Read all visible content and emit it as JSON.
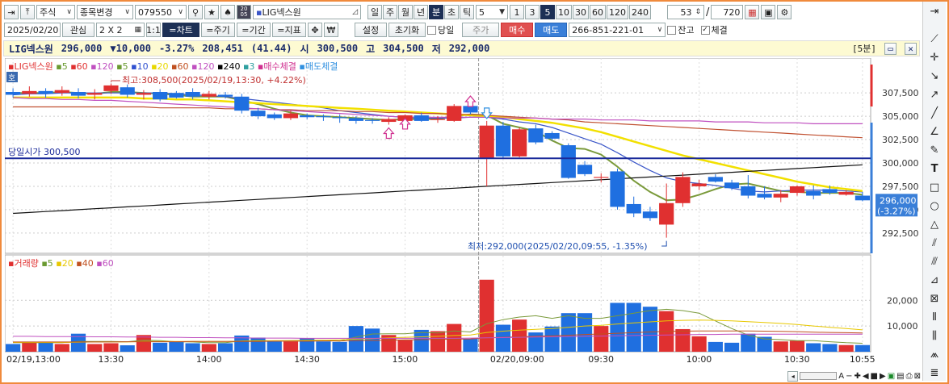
{
  "toolbar1": {
    "market": "주식",
    "change_stock": "종목변경",
    "code": "079550",
    "chart_icon_text": "20\n05",
    "stock_name": "LIG넥스원",
    "periods": [
      "일",
      "주",
      "월",
      "년",
      "분",
      "초",
      "틱"
    ],
    "period_active": "분",
    "interval_value": "5",
    "intervals": [
      "1",
      "3",
      "5",
      "10",
      "30",
      "60",
      "120",
      "240"
    ],
    "interval_active": "5",
    "count_visible": "53",
    "count_total": "720"
  },
  "toolbar2": {
    "date": "2025/02/20",
    "watch": "관심",
    "layout": "2 X 2",
    "one_by_one": "1:1",
    "chart": "=차트",
    "period": "=주기",
    "range": "=기간",
    "indicator": "=지표",
    "won": "₩",
    "settings": "설정",
    "reset": "초기화",
    "same_day": "당일",
    "price": "주가",
    "buy": "매수",
    "sell": "매도",
    "account": "266-851-221-01",
    "balance": "잔고",
    "executed": "체결"
  },
  "info": {
    "name": "LIG넥스원",
    "price": "296,000",
    "change": "▼10,000",
    "change_pct": "-3.27%",
    "volume": "208,451",
    "volume_ratio": "(41.44)",
    "open_label": "시",
    "open": "300,500",
    "high_label": "고",
    "high": "304,500",
    "low_label": "저",
    "low": "292,000",
    "timeframe": "[5분]"
  },
  "price_legend": [
    {
      "label": "LIG넥스원",
      "color": "#e03030"
    },
    {
      "label": "5",
      "color": "#6a9a30"
    },
    {
      "label": "60",
      "color": "#e03030"
    },
    {
      "label": "120",
      "color": "#c050c0"
    },
    {
      "label": "5",
      "color": "#6a9a30"
    },
    {
      "label": "10",
      "color": "#3050d0"
    },
    {
      "label": "20",
      "color": "#e8d800"
    },
    {
      "label": "60",
      "color": "#c05020"
    },
    {
      "label": "120",
      "color": "#c050c0"
    },
    {
      "label": "240",
      "color": "#000000"
    },
    {
      "label": "3",
      "color": "#30a0a0"
    },
    {
      "label": "매수체결",
      "color": "#d03090"
    },
    {
      "label": "매도체결",
      "color": "#3090e0"
    }
  ],
  "volume_legend": [
    {
      "label": "거래량",
      "color": "#e03030"
    },
    {
      "label": "5",
      "color": "#6a9a30"
    },
    {
      "label": "20",
      "color": "#e8c800"
    },
    {
      "label": "40",
      "color": "#c05020"
    },
    {
      "label": "60",
      "color": "#c050c0"
    }
  ],
  "annotations": {
    "high": "최고:308,500(2025/02/19,13:30, +4.22%)",
    "low": "최저:292,000(2025/02/20,09:55, -1.35%)",
    "open_line": "당일시가 300,500",
    "price_badge": "296,000",
    "price_badge_pct": "(-3.27%)",
    "ho": "호"
  },
  "chart_data": {
    "type": "candlestick",
    "title": "LIG넥스원",
    "timeframe": "5분",
    "x_labels": [
      "02/19,13:00",
      "13:30",
      "14:00",
      "14:30",
      "15:00",
      "02/20,09:00",
      "09:30",
      "10:00",
      "10:30",
      "10:55"
    ],
    "y_ticks": [
      "307,500",
      "305,000",
      "302,500",
      "300,000",
      "297,500",
      "295,000",
      "292,500"
    ],
    "ylim": [
      290500,
      309500
    ],
    "vol_ticks": [
      "20,000",
      "10,000"
    ],
    "vol_ylim": [
      0,
      32000
    ],
    "open_line": 300500,
    "candles": [
      {
        "o": 307600,
        "h": 308000,
        "l": 307000,
        "c": 307300,
        "v": 3000
      },
      {
        "o": 307400,
        "h": 308200,
        "l": 307100,
        "c": 307700,
        "v": 3500
      },
      {
        "o": 307700,
        "h": 308000,
        "l": 307000,
        "c": 307400,
        "v": 3500
      },
      {
        "o": 307500,
        "h": 308200,
        "l": 307200,
        "c": 307800,
        "v": 3000
      },
      {
        "o": 307600,
        "h": 308000,
        "l": 306900,
        "c": 307200,
        "v": 7000
      },
      {
        "o": 307300,
        "h": 307900,
        "l": 306800,
        "c": 307500,
        "v": 3000
      },
      {
        "o": 307700,
        "h": 308500,
        "l": 307400,
        "c": 308300,
        "v": 3300
      },
      {
        "o": 308100,
        "h": 308400,
        "l": 307000,
        "c": 307300,
        "v": 2500
      },
      {
        "o": 307300,
        "h": 307800,
        "l": 306800,
        "c": 307500,
        "v": 6500
      },
      {
        "o": 307600,
        "h": 307900,
        "l": 306600,
        "c": 306800,
        "v": 3500
      },
      {
        "o": 307500,
        "h": 307700,
        "l": 306900,
        "c": 307000,
        "v": 4000
      },
      {
        "o": 307600,
        "h": 308000,
        "l": 306800,
        "c": 307100,
        "v": 3300
      },
      {
        "o": 307100,
        "h": 307700,
        "l": 306800,
        "c": 307400,
        "v": 3000
      },
      {
        "o": 307300,
        "h": 307600,
        "l": 306900,
        "c": 307100,
        "v": 3300
      },
      {
        "o": 307100,
        "h": 307400,
        "l": 305300,
        "c": 305600,
        "v": 6300
      },
      {
        "o": 305600,
        "h": 305900,
        "l": 304700,
        "c": 305000,
        "v": 5500
      },
      {
        "o": 305200,
        "h": 305400,
        "l": 304600,
        "c": 304800,
        "v": 4000
      },
      {
        "o": 304800,
        "h": 305600,
        "l": 304600,
        "c": 305300,
        "v": 4000
      },
      {
        "o": 305100,
        "h": 305300,
        "l": 304700,
        "c": 304900,
        "v": 5300
      },
      {
        "o": 305000,
        "h": 305200,
        "l": 304500,
        "c": 304900,
        "v": 4000
      },
      {
        "o": 304900,
        "h": 305200,
        "l": 304300,
        "c": 304800,
        "v": 3800
      },
      {
        "o": 304800,
        "h": 305000,
        "l": 304200,
        "c": 304500,
        "v": 10000
      },
      {
        "o": 304600,
        "h": 304800,
        "l": 304200,
        "c": 304500,
        "v": 9000
      },
      {
        "o": 304400,
        "h": 304900,
        "l": 304100,
        "c": 304700,
        "v": 6500
      },
      {
        "o": 304500,
        "h": 305200,
        "l": 304300,
        "c": 305100,
        "v": 4500
      },
      {
        "o": 305100,
        "h": 305400,
        "l": 304400,
        "c": 304500,
        "v": 8500
      },
      {
        "o": 304600,
        "h": 305000,
        "l": 304300,
        "c": 304700,
        "v": 8000
      },
      {
        "o": 304500,
        "h": 306300,
        "l": 304400,
        "c": 306100,
        "v": 10800
      },
      {
        "o": 306100,
        "h": 306300,
        "l": 305200,
        "c": 305400,
        "v": 5000
      },
      {
        "o": 300500,
        "h": 304500,
        "l": 297500,
        "c": 304000,
        "v": 28000
      },
      {
        "o": 304000,
        "h": 304400,
        "l": 300500,
        "c": 300700,
        "v": 10500
      },
      {
        "o": 300700,
        "h": 303800,
        "l": 300600,
        "c": 303600,
        "v": 12500
      },
      {
        "o": 303700,
        "h": 304100,
        "l": 302000,
        "c": 302200,
        "v": 7500
      },
      {
        "o": 303200,
        "h": 303400,
        "l": 302400,
        "c": 302600,
        "v": 9800
      },
      {
        "o": 301900,
        "h": 302100,
        "l": 298300,
        "c": 298400,
        "v": 15000
      },
      {
        "o": 299800,
        "h": 300200,
        "l": 298600,
        "c": 298800,
        "v": 15000
      },
      {
        "o": 298400,
        "h": 298900,
        "l": 297900,
        "c": 298500,
        "v": 10000
      },
      {
        "o": 299100,
        "h": 299400,
        "l": 295000,
        "c": 295300,
        "v": 19000
      },
      {
        "o": 295600,
        "h": 296400,
        "l": 294200,
        "c": 294600,
        "v": 19000
      },
      {
        "o": 294800,
        "h": 295300,
        "l": 293800,
        "c": 294100,
        "v": 17500
      },
      {
        "o": 293400,
        "h": 297800,
        "l": 292000,
        "c": 295700,
        "v": 15800
      },
      {
        "o": 295700,
        "h": 299000,
        "l": 295300,
        "c": 298500,
        "v": 8800
      },
      {
        "o": 297500,
        "h": 298200,
        "l": 297100,
        "c": 297800,
        "v": 6000
      },
      {
        "o": 298500,
        "h": 298800,
        "l": 297900,
        "c": 298000,
        "v": 3800
      },
      {
        "o": 297900,
        "h": 298200,
        "l": 297100,
        "c": 297300,
        "v": 3500
      },
      {
        "o": 297500,
        "h": 298700,
        "l": 296200,
        "c": 296500,
        "v": 7000
      },
      {
        "o": 296700,
        "h": 297500,
        "l": 296100,
        "c": 296300,
        "v": 5800
      },
      {
        "o": 296300,
        "h": 297100,
        "l": 295800,
        "c": 296700,
        "v": 4000
      },
      {
        "o": 296800,
        "h": 297600,
        "l": 296500,
        "c": 297500,
        "v": 4300
      },
      {
        "o": 297000,
        "h": 297600,
        "l": 296100,
        "c": 296500,
        "v": 3300
      },
      {
        "o": 297200,
        "h": 297600,
        "l": 296600,
        "c": 296800,
        "v": 3000
      },
      {
        "o": 296600,
        "h": 297100,
        "l": 296500,
        "c": 296900,
        "v": 2600
      },
      {
        "o": 296500,
        "h": 296900,
        "l": 295900,
        "c": 296000,
        "v": 2600
      }
    ],
    "ma_lines": [
      {
        "name": "5",
        "color": "#7a9a3a",
        "values": [
          307500,
          307500,
          307500,
          307600,
          307500,
          307400,
          307600,
          307600,
          307500,
          307400,
          307300,
          307100,
          307100,
          307100,
          306700,
          306300,
          305800,
          305400,
          305100,
          305000,
          304900,
          304800,
          304700,
          304600,
          304700,
          304700,
          304700,
          305000,
          305200,
          305100,
          304200,
          303800,
          303400,
          302400,
          301600,
          301500,
          300900,
          299600,
          298100,
          296900,
          296000,
          296100,
          296600,
          297200,
          297700,
          297800,
          297400,
          297000,
          296900,
          296800,
          296800,
          296800,
          296600
        ]
      },
      {
        "name": "10",
        "color": "#3a56c8",
        "values": [
          307300,
          307400,
          307400,
          307500,
          307500,
          307500,
          307500,
          307500,
          307500,
          307500,
          307400,
          307300,
          307200,
          307100,
          306900,
          306700,
          306500,
          306300,
          306100,
          305900,
          305600,
          305400,
          305200,
          305000,
          304900,
          304800,
          304800,
          304800,
          304900,
          304900,
          304700,
          304400,
          304200,
          303800,
          303200,
          302600,
          302000,
          301100,
          300100,
          299200,
          298400,
          298000,
          297800,
          297600,
          297300,
          297000,
          296900,
          297000,
          297100,
          297100,
          297100,
          297000,
          296900
        ]
      },
      {
        "name": "20",
        "color": "#f2e000",
        "values": [
          307000,
          307000,
          307000,
          307000,
          307000,
          307000,
          307000,
          307000,
          306900,
          306900,
          306800,
          306800,
          306700,
          306600,
          306500,
          306400,
          306300,
          306200,
          306100,
          306000,
          305900,
          305800,
          305700,
          305600,
          305500,
          305400,
          305300,
          305200,
          305100,
          305000,
          304900,
          304700,
          304500,
          304300,
          304000,
          303700,
          303300,
          302800,
          302300,
          301800,
          301300,
          300800,
          300400,
          300000,
          299600,
          299200,
          298800,
          298400,
          298000,
          297700,
          297400,
          297200,
          297000
        ]
      },
      {
        "name": "60",
        "color": "#c05030",
        "values": [
          306000,
          306000,
          306000,
          306000,
          306000,
          306000,
          306000,
          306000,
          306000,
          305900,
          305900,
          305900,
          305900,
          305800,
          305800,
          305800,
          305700,
          305700,
          305600,
          305600,
          305600,
          305500,
          305500,
          305400,
          305400,
          305300,
          305300,
          305200,
          305200,
          305100,
          305000,
          304900,
          304800,
          304700,
          304600,
          304400,
          304300,
          304200,
          304100,
          304000,
          303900,
          303800,
          303700,
          303600,
          303500,
          303400,
          303300,
          303200,
          303100,
          303000,
          302900,
          302800,
          302700
        ]
      },
      {
        "name": "120",
        "color": "#c050c0",
        "values": [
          307000,
          306900,
          306900,
          306800,
          306800,
          306700,
          306700,
          306600,
          306500,
          306400,
          306300,
          306200,
          306100,
          306000,
          305900,
          305800,
          305700,
          305600,
          305500,
          305400,
          305300,
          305200,
          305100,
          305000,
          304900,
          304900,
          304900,
          304900,
          304900,
          304900,
          304800,
          304800,
          304800,
          304700,
          304700,
          304700,
          304600,
          304600,
          304600,
          304500,
          304500,
          304500,
          304500,
          304400,
          304400,
          304400,
          304300,
          304300,
          304300,
          304200,
          304200,
          304200,
          304200
        ]
      },
      {
        "name": "240",
        "color": "#111111",
        "values": [
          294600,
          294700,
          294800,
          294900,
          295000,
          295100,
          295200,
          295300,
          295400,
          295500,
          295600,
          295700,
          295800,
          295900,
          296000,
          296100,
          296200,
          296300,
          296400,
          296500,
          296600,
          296700,
          296800,
          296900,
          297000,
          297100,
          297200,
          297300,
          297400,
          297500,
          297600,
          297700,
          297800,
          297900,
          298000,
          298100,
          298200,
          298300,
          298400,
          298500,
          298600,
          298700,
          298800,
          298900,
          299000,
          299100,
          299200,
          299300,
          299400,
          299500,
          299600,
          299700,
          299800
        ]
      }
    ],
    "vol_ma_lines": [
      {
        "name": "5",
        "color": "#7a9a3a",
        "values": [
          3500,
          3500,
          3500,
          3500,
          4000,
          4000,
          4000,
          3900,
          4500,
          4300,
          3900,
          3800,
          3500,
          3500,
          4200,
          4400,
          4200,
          4300,
          4500,
          4500,
          4100,
          5700,
          6900,
          7000,
          7000,
          7500,
          7300,
          8100,
          7700,
          10900,
          12500,
          13500,
          14000,
          13000,
          14000,
          13000,
          13000,
          14000,
          15000,
          16000,
          16500,
          16000,
          15000,
          12000,
          9000,
          6500,
          5000,
          4700,
          4300,
          4300,
          3900,
          3500,
          3300
        ]
      },
      {
        "name": "20",
        "color": "#e8c800",
        "values": [
          3600,
          3600,
          3600,
          3600,
          3700,
          3800,
          3800,
          3800,
          4000,
          4000,
          4000,
          4000,
          4000,
          4000,
          4100,
          4200,
          4300,
          4300,
          4400,
          4500,
          4600,
          4900,
          5100,
          5400,
          5600,
          5800,
          6000,
          6300,
          6500,
          7500,
          8000,
          8400,
          8700,
          9000,
          9500,
          10000,
          10300,
          10800,
          11200,
          11600,
          12000,
          12200,
          12300,
          12200,
          12000,
          11700,
          11400,
          11000,
          10600,
          10000,
          9500,
          9000,
          8500
        ]
      },
      {
        "name": "40",
        "color": "#c05020",
        "values": [
          3800,
          3800,
          3800,
          3800,
          3800,
          3800,
          3800,
          3900,
          3900,
          3900,
          3900,
          4000,
          4000,
          4000,
          4000,
          4000,
          4100,
          4100,
          4100,
          4200,
          4200,
          4300,
          4400,
          4500,
          4600,
          4700,
          4800,
          4900,
          5000,
          5400,
          5600,
          5800,
          6000,
          6200,
          6400,
          6700,
          6900,
          7200,
          7400,
          7700,
          7900,
          8000,
          8100,
          8100,
          8100,
          8100,
          8000,
          7900,
          7800,
          7600,
          7500,
          7400,
          7300
        ]
      },
      {
        "name": "60",
        "color": "#c050c0",
        "values": [
          6000,
          6000,
          5900,
          5900,
          5900,
          5800,
          5800,
          5700,
          5700,
          5600,
          5600,
          5500,
          5500,
          5400,
          5400,
          5300,
          5300,
          5300,
          5200,
          5200,
          5200,
          5200,
          5200,
          5200,
          5200,
          5200,
          5200,
          5200,
          5300,
          5400,
          5500,
          5600,
          5700,
          5800,
          5900,
          6000,
          6100,
          6200,
          6300,
          6400,
          6500,
          6600,
          6700,
          6700,
          6800,
          6800,
          6800,
          6800,
          6800,
          6800,
          6800,
          6800,
          6800
        ]
      }
    ]
  },
  "statusbar": {
    "icons": [
      "zoom-minus-icon",
      "zoom-plus-icon",
      "play-left-icon",
      "stop-icon",
      "play-right-icon",
      "excel-icon",
      "save-icon",
      "print-icon",
      "close-icon"
    ],
    "font_label": "A"
  }
}
